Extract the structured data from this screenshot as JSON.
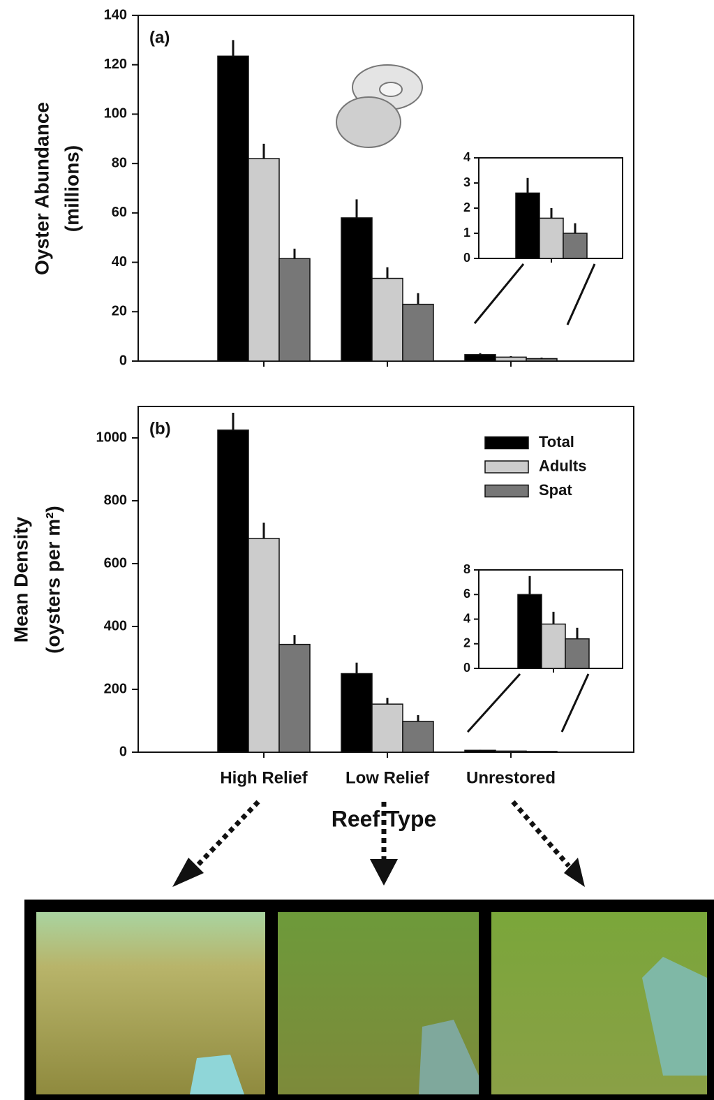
{
  "chart_data": [
    {
      "type": "bar",
      "panel_label": "(a)",
      "ylabel": [
        "Oyster Abundance",
        "(millions)"
      ],
      "series": [
        {
          "color": "#000000",
          "values": [
            123.5,
            58,
            2.6
          ],
          "errors": [
            6.5,
            7.5,
            0.6
          ]
        },
        {
          "color": "#cccccc",
          "values": [
            82,
            33.5,
            1.6
          ],
          "errors": [
            6,
            4.5,
            0.4
          ]
        },
        {
          "color": "#777777",
          "values": [
            41.5,
            23,
            1.0
          ],
          "errors": [
            4,
            4.5,
            0.4
          ]
        }
      ],
      "ylim": [
        0,
        140
      ],
      "yticks": [
        0,
        20,
        40,
        60,
        80,
        100,
        120,
        140
      ],
      "legend": false,
      "inset": {
        "ylim": [
          0,
          4
        ],
        "yticks": [
          0,
          1,
          2,
          3,
          4
        ]
      }
    },
    {
      "type": "bar",
      "panel_label": "(b)",
      "ylabel": [
        "Mean Density",
        "(oysters per m²)"
      ],
      "categories": [
        "High Relief",
        "Low Relief",
        "Unrestored"
      ],
      "xlabel": "Reef Type",
      "series": [
        {
          "name": "Total",
          "color": "#000000",
          "values": [
            1025,
            250,
            6
          ],
          "errors": [
            55,
            35,
            1.5
          ]
        },
        {
          "name": "Adults",
          "color": "#cccccc",
          "values": [
            680,
            153,
            3.6
          ],
          "errors": [
            50,
            20,
            1.0
          ]
        },
        {
          "name": "Spat",
          "color": "#777777",
          "values": [
            343,
            98,
            2.4
          ],
          "errors": [
            30,
            20,
            0.9
          ]
        }
      ],
      "ylim": [
        0,
        1100
      ],
      "yticks": [
        0,
        200,
        400,
        600,
        800,
        1000
      ],
      "legend": true,
      "inset": {
        "ylim": [
          0,
          8
        ],
        "yticks": [
          0,
          2,
          4,
          6,
          8
        ]
      }
    }
  ]
}
